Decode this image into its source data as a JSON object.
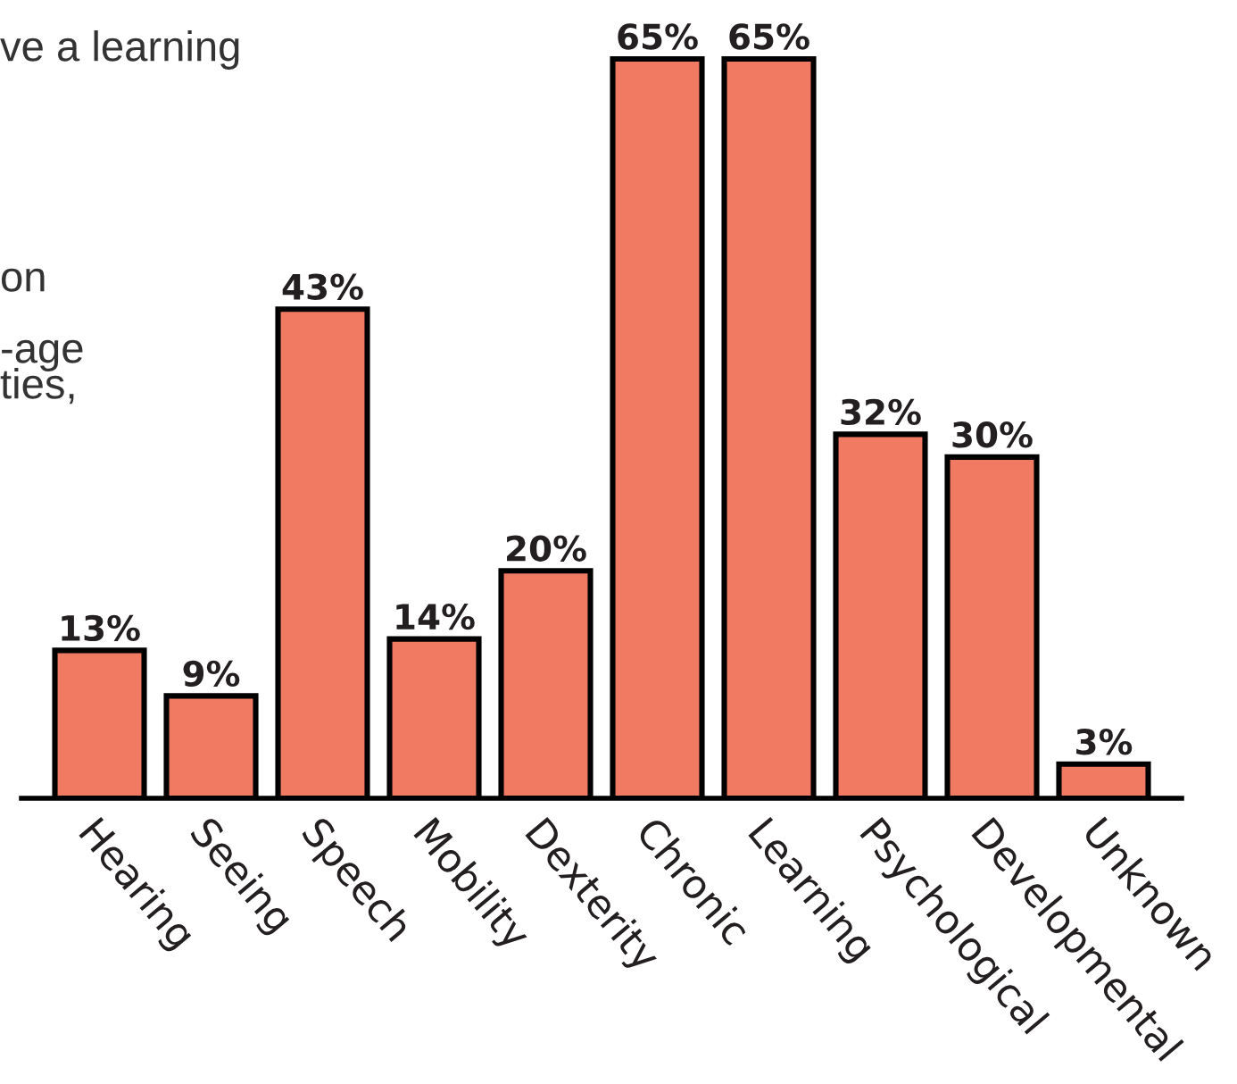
{
  "chart_data": {
    "type": "bar",
    "categories": [
      "Hearing",
      "Seeing",
      "Speech",
      "Mobility",
      "Dexterity",
      "Chronic",
      "Learning",
      "Psychological",
      "Developmental",
      "Unknown"
    ],
    "values": [
      13,
      9,
      43,
      14,
      20,
      65,
      65,
      32,
      30,
      3
    ],
    "color": "#f07a62",
    "value_labels": [
      "13%",
      "9%",
      "43%",
      "14%",
      "20%",
      "65%",
      "65%",
      "32%",
      "30%",
      "3%"
    ],
    "grid": false,
    "annotations": [
      "ve a learning",
      "on",
      "-age",
      "ties,"
    ]
  }
}
